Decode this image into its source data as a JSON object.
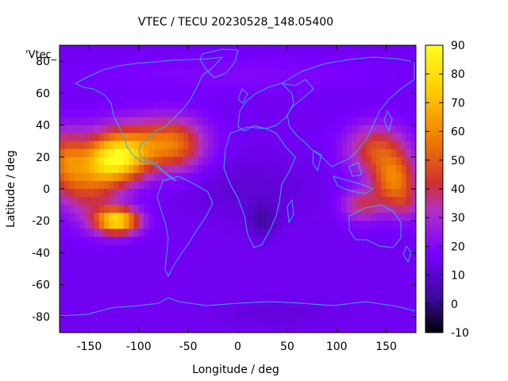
{
  "chart_data": {
    "type": "heatmap",
    "title": "VTEC / TECU 20230528_148.05400",
    "xlabel": "Longitude / deg",
    "ylabel": "Latitude / deg",
    "key_label": "'Vtec_",
    "xlim": [
      -180,
      180
    ],
    "ylim": [
      -90,
      90
    ],
    "x_ticks": [
      -150,
      -100,
      -50,
      0,
      50,
      100,
      150
    ],
    "y_ticks": [
      -80,
      -60,
      -40,
      -20,
      0,
      20,
      40,
      60,
      80
    ],
    "colorbar": {
      "range": [
        -10,
        90
      ],
      "ticks": [
        -10,
        0,
        10,
        20,
        30,
        40,
        50,
        60,
        70,
        80,
        90
      ],
      "palette": [
        "#000000",
        "#3a0a9a",
        "#7a00ff",
        "#b030c8",
        "#d03030",
        "#f08000",
        "#ffcc00",
        "#ffff20"
      ]
    },
    "coastline_color": "#33aaff",
    "grid": false,
    "features": [
      {
        "name": "americas-crest-north",
        "lon": -120,
        "lat": 18,
        "vtec": 78
      },
      {
        "name": "americas-crest-south",
        "lon": -120,
        "lat": -20,
        "vtec": 88
      },
      {
        "name": "pacific-east-band",
        "lon": -155,
        "lat": 0,
        "vtec": 58
      },
      {
        "name": "north-america-mid",
        "lon": -95,
        "lat": 30,
        "vtec": 60
      },
      {
        "name": "north-atlantic",
        "lon": -60,
        "lat": 30,
        "vtec": 48
      },
      {
        "name": "asia-pacific-north",
        "lon": 140,
        "lat": 25,
        "vtec": 58
      },
      {
        "name": "asia-pacific-south",
        "lon": 150,
        "lat": 5,
        "vtec": 72
      },
      {
        "name": "indonesia",
        "lon": 120,
        "lat": -10,
        "vtec": 45
      },
      {
        "name": "africa-low",
        "lon": 25,
        "lat": -20,
        "vtec": 5
      },
      {
        "name": "background-midlat",
        "lon": 0,
        "lat": -50,
        "vtec": 17
      }
    ]
  }
}
